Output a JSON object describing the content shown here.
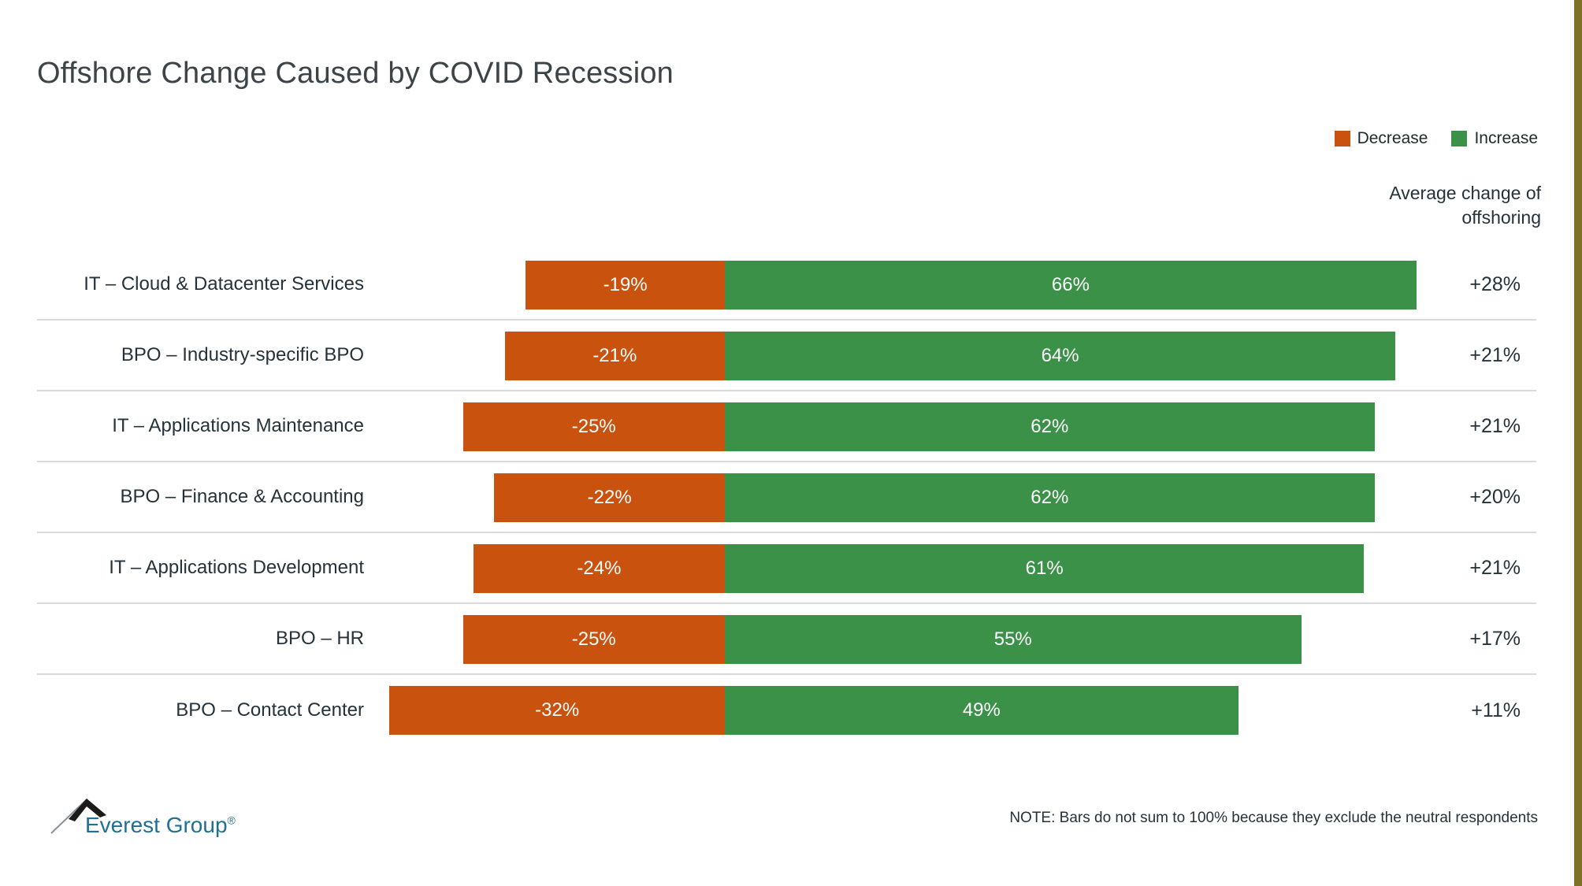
{
  "title": "Offshore Change Caused by COVID Recession",
  "legend": {
    "decrease_label": "Decrease",
    "increase_label": "Increase"
  },
  "right_header": {
    "line1": "Average change of",
    "line2": "offshoring"
  },
  "colors": {
    "decrease": "#C8520E",
    "increase": "#3B9148",
    "edge_stripe": "#7D7128",
    "row_divider": "#DADADA",
    "logo_blue": "#1F7091"
  },
  "chart_data": {
    "type": "bar",
    "orientation": "horizontal_diverging",
    "title": "Offshore Change Caused by COVID Recession",
    "value_unit": "%",
    "legend_position": "top-right",
    "categories": [
      "IT – Cloud & Datacenter Services",
      "BPO – Industry-specific BPO",
      "IT – Applications Maintenance",
      "BPO – Finance & Accounting",
      "IT – Applications Development",
      "BPO – HR",
      "BPO – Contact Center"
    ],
    "series": [
      {
        "name": "Decrease",
        "color": "#C8520E",
        "values": [
          -19,
          -21,
          -25,
          -22,
          -24,
          -25,
          -32
        ]
      },
      {
        "name": "Increase",
        "color": "#3B9148",
        "values": [
          66,
          64,
          62,
          62,
          61,
          55,
          49
        ]
      }
    ],
    "average_change_of_offshoring": [
      "+28%",
      "+21%",
      "+21%",
      "+20%",
      "+21%",
      "+17%",
      "+11%"
    ],
    "note": "NOTE: Bars do not sum to 100% because they exclude the neutral respondents"
  },
  "rows": [
    {
      "label": "IT – Cloud & Datacenter Services",
      "decrease": 19,
      "decrease_label": "-19%",
      "increase": 66,
      "increase_label": "66%",
      "average_label": "+28%"
    },
    {
      "label": "BPO – Industry-specific BPO",
      "decrease": 21,
      "decrease_label": "-21%",
      "increase": 64,
      "increase_label": "64%",
      "average_label": "+21%"
    },
    {
      "label": "IT – Applications Maintenance",
      "decrease": 25,
      "decrease_label": "-25%",
      "increase": 62,
      "increase_label": "62%",
      "average_label": "+21%"
    },
    {
      "label": "BPO – Finance & Accounting",
      "decrease": 22,
      "decrease_label": "-22%",
      "increase": 62,
      "increase_label": "62%",
      "average_label": "+20%"
    },
    {
      "label": "IT – Applications Development",
      "decrease": 24,
      "decrease_label": "-24%",
      "increase": 61,
      "increase_label": "61%",
      "average_label": "+21%"
    },
    {
      "label": "BPO – HR",
      "decrease": 25,
      "decrease_label": "-25%",
      "increase": 55,
      "increase_label": "55%",
      "average_label": "+17%"
    },
    {
      "label": "BPO – Contact Center",
      "decrease": 32,
      "decrease_label": "-32%",
      "increase": 49,
      "increase_label": "49%",
      "average_label": "+11%"
    }
  ],
  "footer": {
    "note": "NOTE: Bars do not sum to 100% because they exclude the neutral respondents",
    "logo_text": "Everest Group",
    "logo_registered": "®"
  }
}
